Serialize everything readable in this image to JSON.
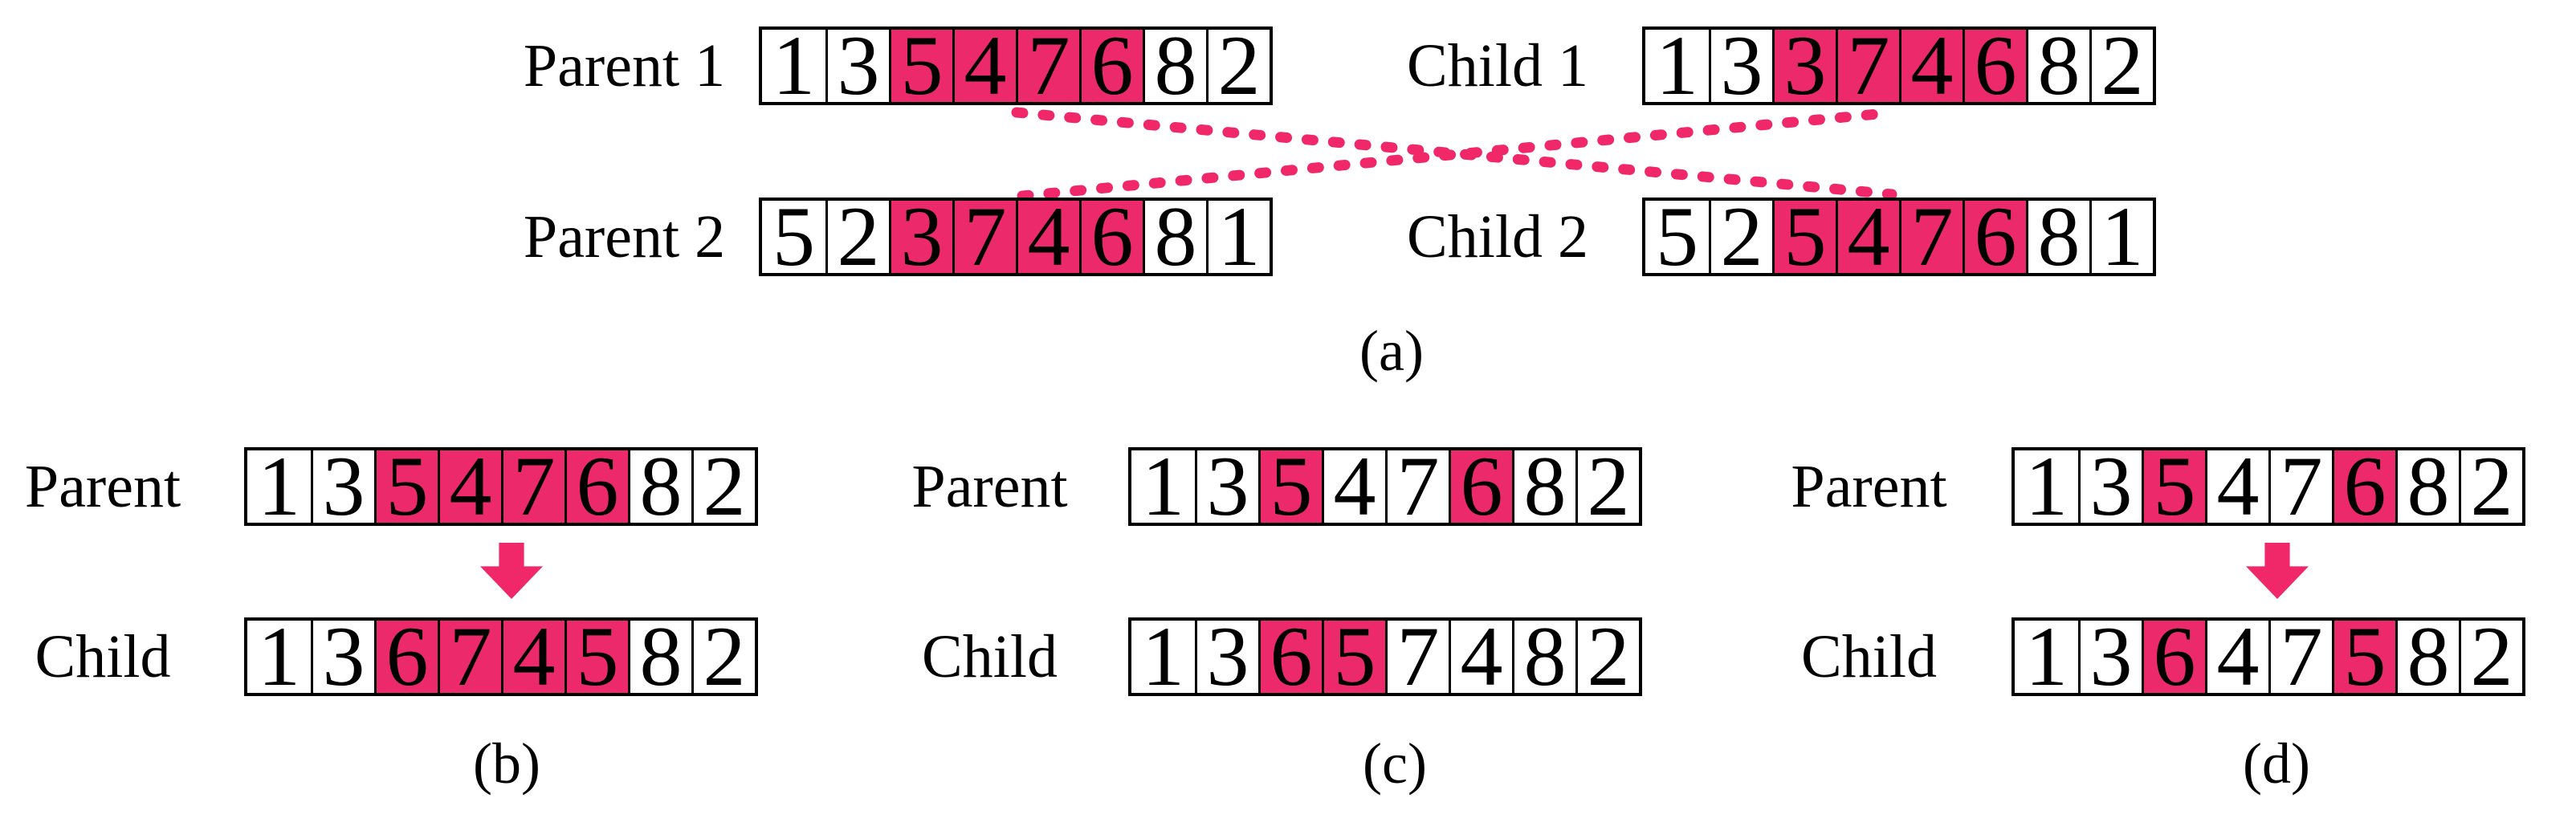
{
  "figure": {
    "colors": {
      "highlight_pink": "#ec2a6b",
      "accent_pink": "#f02768",
      "border_black": "#000000"
    },
    "panels": {
      "a": {
        "caption": "(a)",
        "rows": [
          {
            "label": "Parent 1",
            "values": [
              "1",
              "3",
              "5",
              "4",
              "7",
              "6",
              "8",
              "2"
            ],
            "highlight": [
              2,
              3,
              4,
              5
            ]
          },
          {
            "label": "Child 1",
            "values": [
              "1",
              "3",
              "3",
              "7",
              "4",
              "6",
              "8",
              "2"
            ],
            "highlight": [
              2,
              3,
              4,
              5
            ]
          },
          {
            "label": "Parent 2",
            "values": [
              "5",
              "2",
              "3",
              "7",
              "4",
              "6",
              "8",
              "1"
            ],
            "highlight": [
              2,
              3,
              4,
              5
            ]
          },
          {
            "label": "Child 2",
            "values": [
              "5",
              "2",
              "5",
              "4",
              "7",
              "6",
              "8",
              "1"
            ],
            "highlight": [
              2,
              3,
              4,
              5
            ]
          }
        ]
      },
      "b": {
        "caption": "(b)",
        "rows": [
          {
            "label": "Parent",
            "values": [
              "1",
              "3",
              "5",
              "4",
              "7",
              "6",
              "8",
              "2"
            ],
            "highlight": [
              2,
              3,
              4,
              5
            ]
          },
          {
            "label": "Child",
            "values": [
              "1",
              "3",
              "6",
              "7",
              "4",
              "5",
              "8",
              "2"
            ],
            "highlight": [
              2,
              3,
              4,
              5
            ]
          }
        ]
      },
      "c": {
        "caption": "(c)",
        "rows": [
          {
            "label": "Parent",
            "values": [
              "1",
              "3",
              "5",
              "4",
              "7",
              "6",
              "8",
              "2"
            ],
            "highlight": [
              2,
              5
            ]
          },
          {
            "label": "Child",
            "values": [
              "1",
              "3",
              "6",
              "5",
              "7",
              "4",
              "8",
              "2"
            ],
            "highlight": [
              2,
              3
            ]
          }
        ]
      },
      "d": {
        "caption": "(d)",
        "rows": [
          {
            "label": "Parent",
            "values": [
              "1",
              "3",
              "5",
              "4",
              "7",
              "6",
              "8",
              "2"
            ],
            "highlight": [
              2,
              5
            ]
          },
          {
            "label": "Child",
            "values": [
              "1",
              "3",
              "6",
              "4",
              "7",
              "5",
              "8",
              "2"
            ],
            "highlight": [
              2,
              5
            ]
          }
        ]
      }
    }
  }
}
